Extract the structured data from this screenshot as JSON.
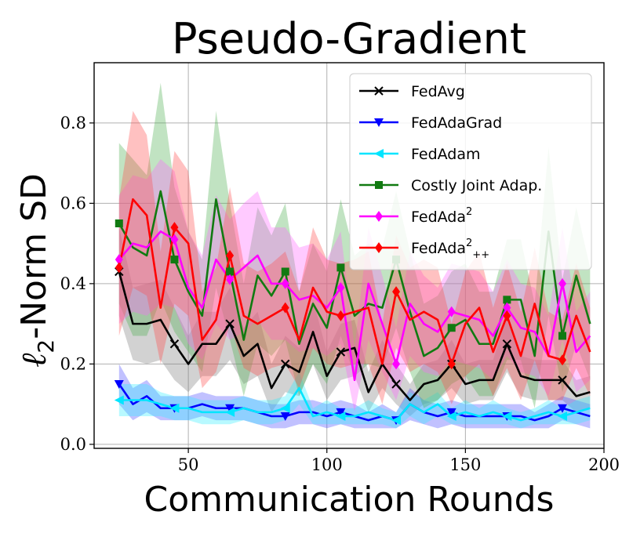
{
  "chart_data": {
    "type": "line",
    "title": "Pseudo-Gradient",
    "xlabel": "Communication Rounds",
    "ylabel_prefix": "ℓ",
    "ylabel_sub": "2",
    "ylabel_suffix": "-Norm SD",
    "xlim": [
      16,
      200
    ],
    "ylim": [
      -0.01,
      0.95
    ],
    "x_ticks": [
      50,
      100,
      150,
      200
    ],
    "y_ticks": [
      0.0,
      0.2,
      0.4,
      0.6,
      0.8
    ],
    "x_tick_labels": [
      "50",
      "100",
      "150",
      "200"
    ],
    "y_tick_labels": [
      "0.0",
      "0.2",
      "0.4",
      "0.6",
      "0.8"
    ],
    "grid": true,
    "legend_position": "top-right",
    "x": [
      25,
      30,
      35,
      40,
      45,
      50,
      55,
      60,
      65,
      70,
      75,
      80,
      85,
      90,
      95,
      100,
      105,
      110,
      115,
      120,
      125,
      130,
      135,
      140,
      145,
      150,
      155,
      160,
      165,
      170,
      175,
      180,
      185,
      190,
      195
    ],
    "series": [
      {
        "name": "FedAvg",
        "color": "#000000",
        "marker": "x",
        "marker_every": [
          0,
          4,
          8,
          12,
          16,
          20,
          24,
          28,
          32
        ],
        "band_color": "#7f7f7f",
        "values": [
          0.43,
          0.3,
          0.3,
          0.31,
          0.25,
          0.2,
          0.25,
          0.25,
          0.3,
          0.22,
          0.25,
          0.14,
          0.2,
          0.18,
          0.28,
          0.17,
          0.23,
          0.24,
          0.13,
          0.2,
          0.15,
          0.11,
          0.15,
          0.16,
          0.2,
          0.15,
          0.16,
          0.16,
          0.25,
          0.17,
          0.16,
          0.16,
          0.16,
          0.12,
          0.13
        ],
        "band": [
          0.11,
          0.09,
          0.1,
          0.1,
          0.09,
          0.07,
          0.08,
          0.08,
          0.09,
          0.07,
          0.08,
          0.06,
          0.07,
          0.06,
          0.08,
          0.06,
          0.07,
          0.07,
          0.05,
          0.06,
          0.05,
          0.04,
          0.05,
          0.05,
          0.06,
          0.05,
          0.05,
          0.05,
          0.07,
          0.05,
          0.05,
          0.05,
          0.05,
          0.04,
          0.04
        ]
      },
      {
        "name": "FedAdaGrad",
        "color": "#0000ff",
        "marker": "triangle-down",
        "marker_every": [
          0,
          4,
          8,
          12,
          16,
          20,
          24,
          28,
          32
        ],
        "band_color": "#4d4dff",
        "values": [
          0.15,
          0.1,
          0.12,
          0.09,
          0.09,
          0.09,
          0.1,
          0.09,
          0.09,
          0.09,
          0.08,
          0.07,
          0.07,
          0.08,
          0.08,
          0.07,
          0.08,
          0.07,
          0.06,
          0.07,
          0.06,
          0.1,
          0.08,
          0.07,
          0.08,
          0.07,
          0.07,
          0.07,
          0.07,
          0.07,
          0.06,
          0.07,
          0.09,
          0.08,
          0.07
        ],
        "band": [
          0.05,
          0.04,
          0.04,
          0.03,
          0.03,
          0.03,
          0.03,
          0.03,
          0.03,
          0.03,
          0.03,
          0.03,
          0.03,
          0.03,
          0.03,
          0.03,
          0.03,
          0.03,
          0.02,
          0.03,
          0.02,
          0.04,
          0.03,
          0.03,
          0.03,
          0.03,
          0.03,
          0.03,
          0.03,
          0.03,
          0.02,
          0.03,
          0.03,
          0.03,
          0.03
        ]
      },
      {
        "name": "FedAdam",
        "color": "#00e5ff",
        "marker": "triangle-left",
        "marker_every": [
          0,
          4,
          8,
          12,
          16,
          20,
          24,
          28,
          32
        ],
        "band_color": "#33eeff",
        "values": [
          0.11,
          0.11,
          0.11,
          0.1,
          0.09,
          0.09,
          0.08,
          0.08,
          0.08,
          0.09,
          0.08,
          0.08,
          0.09,
          0.14,
          0.07,
          0.08,
          0.07,
          0.07,
          0.08,
          0.07,
          0.06,
          0.1,
          0.08,
          0.1,
          0.07,
          0.08,
          0.07,
          0.08,
          0.07,
          0.06,
          0.07,
          0.08,
          0.07,
          0.08,
          0.09
        ],
        "band": [
          0.04,
          0.04,
          0.04,
          0.03,
          0.03,
          0.03,
          0.03,
          0.03,
          0.03,
          0.03,
          0.03,
          0.03,
          0.03,
          0.04,
          0.02,
          0.03,
          0.02,
          0.02,
          0.03,
          0.02,
          0.02,
          0.03,
          0.03,
          0.03,
          0.02,
          0.03,
          0.02,
          0.03,
          0.02,
          0.02,
          0.02,
          0.03,
          0.02,
          0.03,
          0.03
        ]
      },
      {
        "name": "Costly Joint Adap.",
        "color": "#117a11",
        "marker": "square",
        "marker_every": [
          0,
          4,
          8,
          12,
          16,
          20,
          24,
          28,
          32
        ],
        "band_color": "#4caf50",
        "values": [
          0.55,
          0.49,
          0.47,
          0.63,
          0.46,
          0.38,
          0.32,
          0.61,
          0.43,
          0.26,
          0.42,
          0.37,
          0.43,
          0.25,
          0.35,
          0.29,
          0.44,
          0.32,
          0.35,
          0.34,
          0.46,
          0.33,
          0.22,
          0.24,
          0.29,
          0.31,
          0.25,
          0.25,
          0.36,
          0.36,
          0.22,
          0.53,
          0.27,
          0.42,
          0.3
        ],
        "band": [
          0.2,
          0.22,
          0.2,
          0.27,
          0.18,
          0.15,
          0.14,
          0.22,
          0.17,
          0.14,
          0.17,
          0.15,
          0.17,
          0.13,
          0.15,
          0.14,
          0.17,
          0.15,
          0.15,
          0.15,
          0.17,
          0.15,
          0.13,
          0.13,
          0.14,
          0.14,
          0.13,
          0.13,
          0.15,
          0.15,
          0.13,
          0.21,
          0.14,
          0.17,
          0.14
        ]
      },
      {
        "name": "FedAda²",
        "name_base": "FedAda",
        "name_sup": "2",
        "name_sub": "",
        "color": "#ff00ff",
        "marker": "diamond",
        "marker_every": [
          0,
          4,
          8,
          12,
          16,
          20,
          24,
          28,
          32
        ],
        "band_color": "#ff66ff",
        "values": [
          0.46,
          0.5,
          0.49,
          0.53,
          0.51,
          0.39,
          0.34,
          0.46,
          0.41,
          0.44,
          0.47,
          0.4,
          0.4,
          0.36,
          0.37,
          0.34,
          0.39,
          0.16,
          0.4,
          0.3,
          0.2,
          0.35,
          0.3,
          0.28,
          0.33,
          0.32,
          0.31,
          0.27,
          0.34,
          0.29,
          0.28,
          0.22,
          0.4,
          0.23,
          0.27
        ],
        "band": [
          0.16,
          0.17,
          0.17,
          0.18,
          0.17,
          0.14,
          0.13,
          0.16,
          0.15,
          0.16,
          0.16,
          0.14,
          0.14,
          0.13,
          0.13,
          0.12,
          0.14,
          0.08,
          0.14,
          0.12,
          0.09,
          0.13,
          0.12,
          0.11,
          0.12,
          0.12,
          0.12,
          0.11,
          0.12,
          0.11,
          0.11,
          0.1,
          0.14,
          0.1,
          0.11
        ]
      },
      {
        "name": "FedAda²++",
        "name_base": "FedAda",
        "name_sup": "2",
        "name_sub": "++",
        "color": "#ff0000",
        "marker": "diamond",
        "marker_every": [
          0,
          4,
          8,
          12,
          16,
          20,
          24,
          28,
          32
        ],
        "band_color": "#ff4d4d",
        "values": [
          0.44,
          0.61,
          0.57,
          0.34,
          0.54,
          0.5,
          0.26,
          0.31,
          0.47,
          0.32,
          0.3,
          0.32,
          0.34,
          0.26,
          0.39,
          0.33,
          0.32,
          0.33,
          0.34,
          0.2,
          0.38,
          0.31,
          0.33,
          0.31,
          0.2,
          0.3,
          0.34,
          0.23,
          0.32,
          0.22,
          0.35,
          0.22,
          0.21,
          0.32,
          0.23
        ],
        "band": [
          0.17,
          0.22,
          0.2,
          0.14,
          0.19,
          0.18,
          0.12,
          0.13,
          0.17,
          0.13,
          0.13,
          0.13,
          0.14,
          0.12,
          0.15,
          0.13,
          0.13,
          0.13,
          0.14,
          0.1,
          0.14,
          0.13,
          0.13,
          0.13,
          0.1,
          0.13,
          0.14,
          0.11,
          0.13,
          0.11,
          0.14,
          0.11,
          0.1,
          0.13,
          0.11
        ]
      }
    ]
  }
}
